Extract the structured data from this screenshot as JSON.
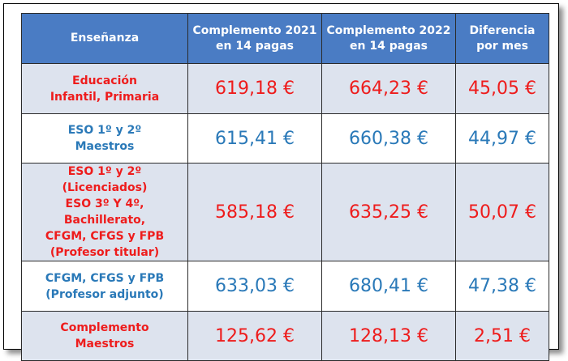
{
  "headers": {
    "c1": "Enseñanza",
    "c2a": "Complemento 2021",
    "c2b": "en 14 pagas",
    "c3a": "Complemento 2022",
    "c3b": "en 14 pagas",
    "c4a": "Diferencia",
    "c4b": "por mes"
  },
  "colors": {
    "header_bg": "#4a7cc4",
    "band_bg": "#dde3ee",
    "red": "#ee1c1c",
    "blue": "#2a79b8"
  },
  "rows": [
    {
      "label": [
        "Educación",
        "Infantil, Primaria"
      ],
      "v2021": "619,18 €",
      "v2022": "664,23 €",
      "diff": "45,05 €"
    },
    {
      "label": [
        "ESO 1º y 2º",
        "Maestros"
      ],
      "v2021": "615,41 €",
      "v2022": "660,38 €",
      "diff": "44,97 €"
    },
    {
      "label": [
        "ESO 1º y 2º (Licenciados)",
        "ESO 3º Y 4º, Bachillerato,",
        "CFGM, CFGS y FPB",
        "(Profesor titular)"
      ],
      "v2021": "585,18 €",
      "v2022": "635,25 €",
      "diff": "50,07 €"
    },
    {
      "label": [
        "CFGM, CFGS y FPB",
        "(Profesor adjunto)"
      ],
      "v2021": "633,03 €",
      "v2022": "680,41 €",
      "diff": "47,38 €"
    },
    {
      "label": [
        "Complemento",
        "Maestros"
      ],
      "v2021": "125,62 €",
      "v2022": "128,13 €",
      "diff": "2,51 €"
    }
  ]
}
